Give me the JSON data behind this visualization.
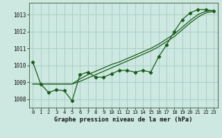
{
  "x": [
    0,
    1,
    2,
    3,
    4,
    5,
    6,
    7,
    8,
    9,
    10,
    11,
    12,
    13,
    14,
    15,
    16,
    17,
    18,
    19,
    20,
    21,
    22,
    23
  ],
  "line_main": [
    1010.2,
    1008.9,
    1008.4,
    1008.55,
    1008.5,
    1007.9,
    1009.45,
    1009.6,
    1009.3,
    1009.3,
    1009.5,
    1009.7,
    1009.7,
    1009.6,
    1009.7,
    1009.6,
    1010.5,
    1011.2,
    1012.0,
    1012.7,
    1013.1,
    1013.3,
    1013.3,
    1013.2
  ],
  "line_smooth1": [
    1008.9,
    1008.9,
    1008.9,
    1008.9,
    1008.9,
    1008.9,
    1009.05,
    1009.25,
    1009.45,
    1009.65,
    1009.85,
    1010.05,
    1010.25,
    1010.45,
    1010.65,
    1010.85,
    1011.1,
    1011.4,
    1011.7,
    1012.1,
    1012.5,
    1012.85,
    1013.1,
    1013.2
  ],
  "line_smooth2": [
    1008.9,
    1008.9,
    1008.9,
    1008.9,
    1008.9,
    1008.9,
    1009.2,
    1009.45,
    1009.65,
    1009.85,
    1010.05,
    1010.2,
    1010.4,
    1010.6,
    1010.8,
    1011.0,
    1011.25,
    1011.55,
    1011.85,
    1012.25,
    1012.65,
    1013.0,
    1013.2,
    1013.25
  ],
  "bg_color": "#cce8e0",
  "grid_color": "#aacfc8",
  "line_color": "#1a5c1a",
  "title": "Graphe pression niveau de la mer (hPa)",
  "ylim_min": 1007.5,
  "ylim_max": 1013.7,
  "yticks": [
    1008,
    1009,
    1010,
    1011,
    1012,
    1013
  ],
  "xticks": [
    0,
    1,
    2,
    3,
    4,
    5,
    6,
    7,
    8,
    9,
    10,
    11,
    12,
    13,
    14,
    15,
    16,
    17,
    18,
    19,
    20,
    21,
    22,
    23
  ]
}
